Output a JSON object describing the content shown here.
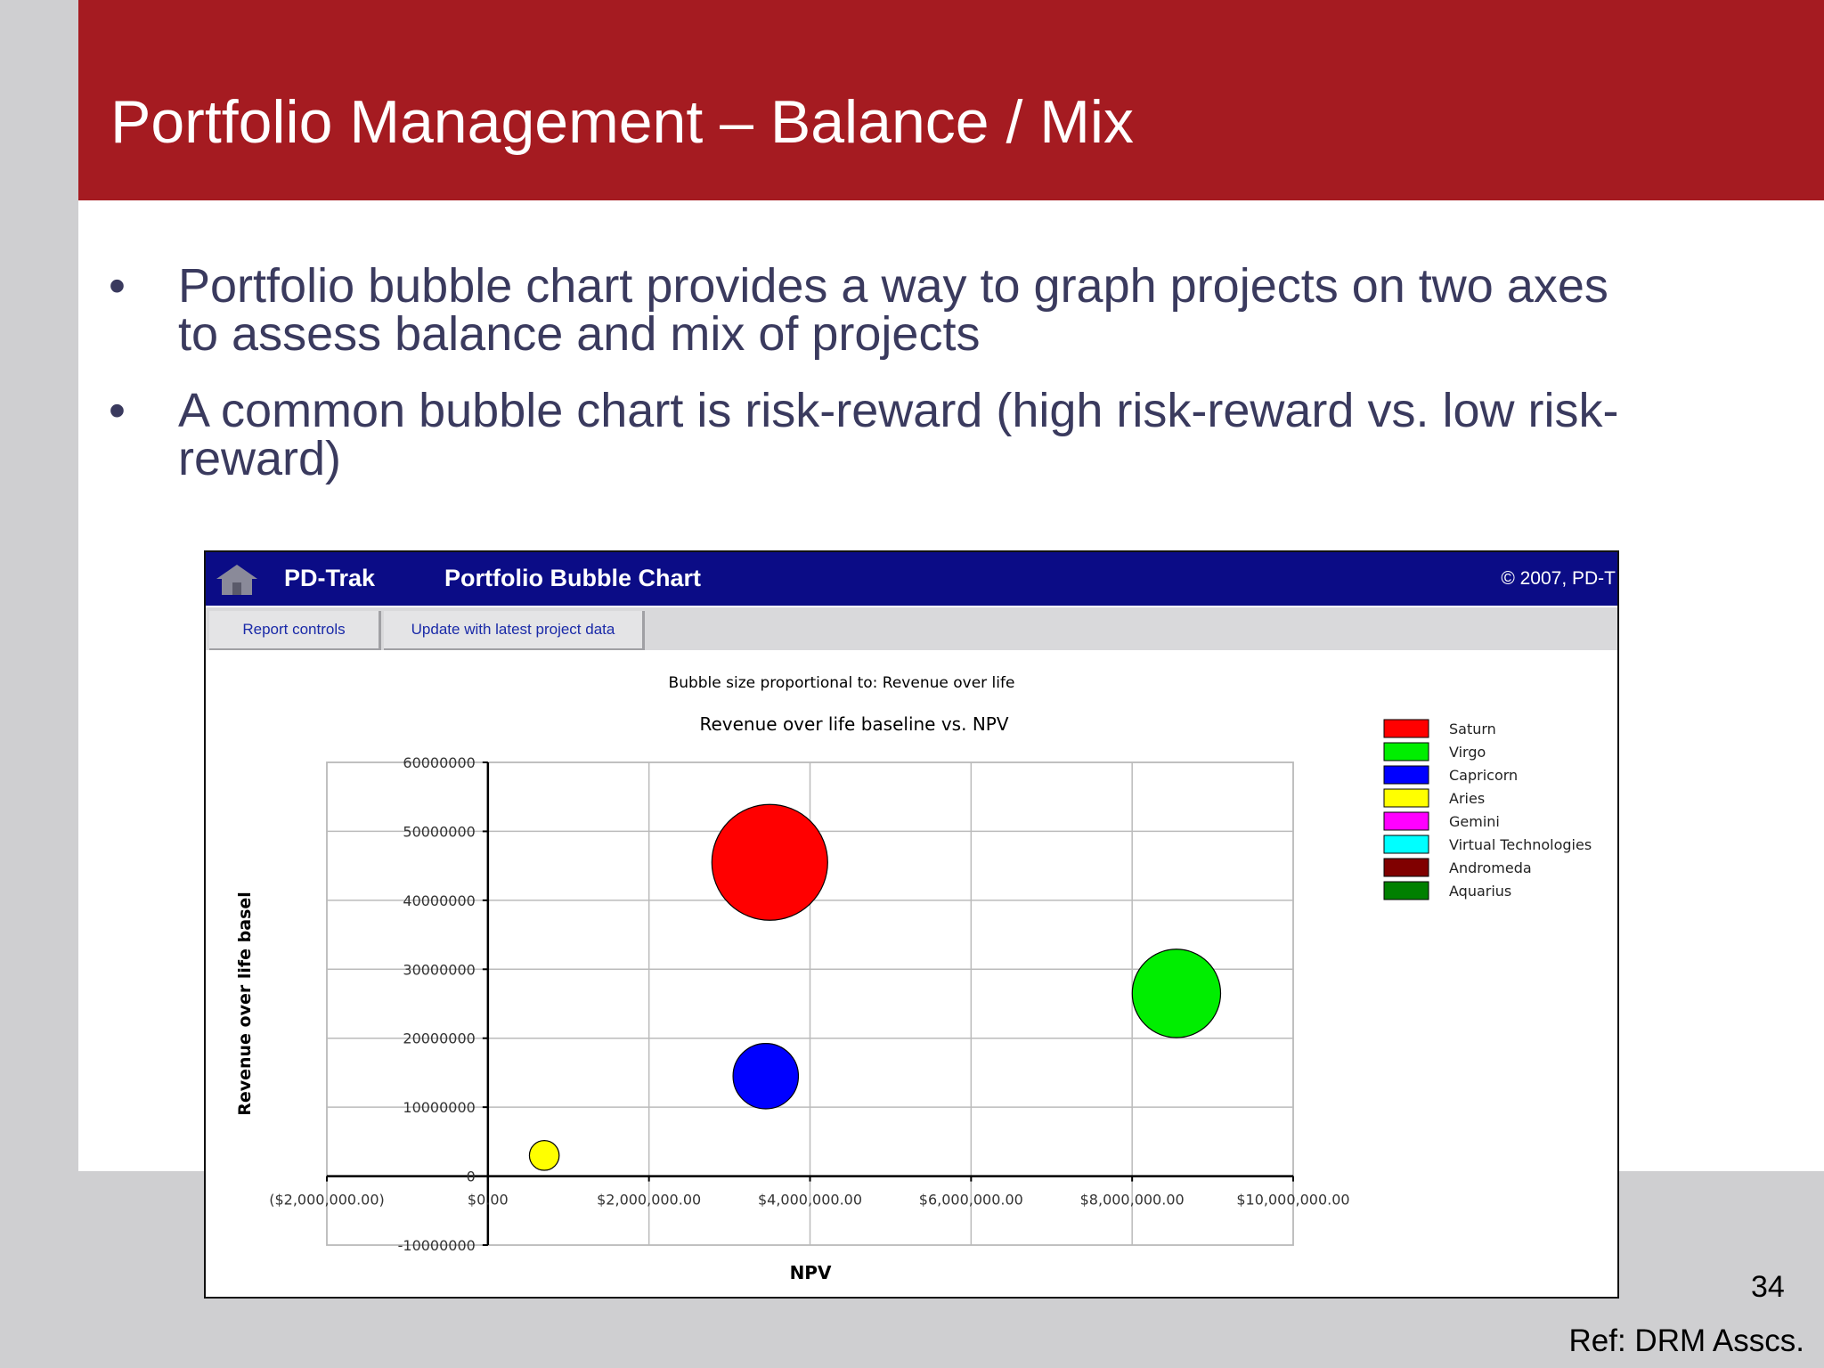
{
  "slide": {
    "title": "Portfolio Management – Balance / Mix",
    "bullets": [
      {
        "line1": "Portfolio bubble chart provides a way to graph projects on two axes",
        "line2": "to assess balance and mix of projects"
      },
      {
        "line1": "A common bubble chart is risk-reward (high risk-reward vs. low risk-",
        "line2": "reward)"
      }
    ],
    "bullet_glyph": "•",
    "page_number": "34",
    "reference": "Ref: DRM Asscs."
  },
  "app": {
    "icon": "home-icon",
    "name": "PD-Trak",
    "report_title": "Portfolio Bubble Chart",
    "copyright": "© 2007, PD-T",
    "toolbar": {
      "report_controls_label": "Report controls",
      "update_label": "Update with latest project data"
    },
    "colors": {
      "header": "#0b0c86",
      "toolbar": "#d9d9db",
      "title_band": "#a51b21"
    }
  },
  "chart_data": {
    "type": "scatter",
    "subtitle": "Bubble size proportional to:  Revenue over life",
    "title": "Revenue over life baseline vs. NPV",
    "xlabel": "NPV",
    "ylabel": "Revenue over life basel",
    "xlim": [
      -2000000,
      10000000
    ],
    "ylim": [
      -10000000,
      60000000
    ],
    "x_tick_labels": [
      "($2,000,000.00)",
      "$0.00",
      "$2,000,000.00",
      "$4,000,000.00",
      "$6,000,000.00",
      "$8,000,000.00",
      "$10,000,000.00"
    ],
    "x_ticks": [
      -2000000,
      0,
      2000000,
      4000000,
      6000000,
      8000000,
      10000000
    ],
    "y_tick_labels": [
      "60000000",
      "50000000",
      "40000000",
      "30000000",
      "20000000",
      "10000000",
      "0",
      "-10000000"
    ],
    "y_ticks": [
      60000000,
      50000000,
      40000000,
      30000000,
      20000000,
      10000000,
      0,
      -10000000
    ],
    "grid": true,
    "legend_position": "right",
    "series": [
      {
        "name": "Saturn",
        "color": "#ff0000",
        "points": [
          {
            "x": 3500000,
            "y": 45500000,
            "size": 45500000
          }
        ]
      },
      {
        "name": "Virgo",
        "color": "#00ee00",
        "points": [
          {
            "x": 8550000,
            "y": 26500000,
            "size": 26500000
          }
        ]
      },
      {
        "name": "Capricorn",
        "color": "#0000ff",
        "points": [
          {
            "x": 3450000,
            "y": 14500000,
            "size": 14500000
          }
        ]
      },
      {
        "name": "Aries",
        "color": "#ffff00",
        "points": [
          {
            "x": 700000,
            "y": 3000000,
            "size": 3000000
          }
        ]
      },
      {
        "name": "Gemini",
        "color": "#ff00ff",
        "points": []
      },
      {
        "name": "Virtual Technologies",
        "color": "#00ffff",
        "points": []
      },
      {
        "name": "Andromeda",
        "color": "#800000",
        "points": []
      },
      {
        "name": "Aquarius",
        "color": "#008000",
        "points": []
      }
    ]
  }
}
